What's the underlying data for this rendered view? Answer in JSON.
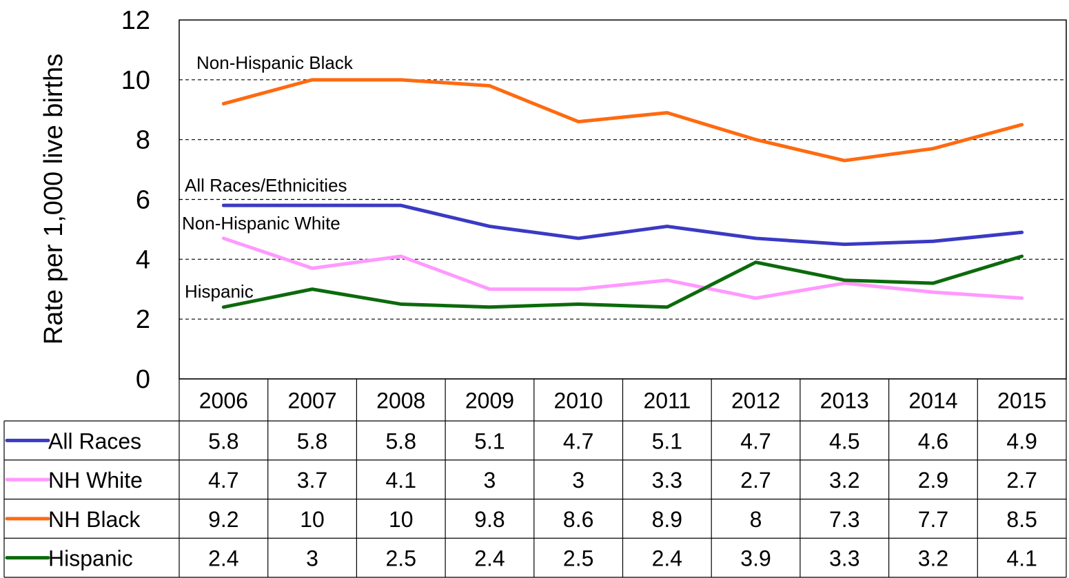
{
  "chart_data": {
    "type": "line",
    "ylabel": "Rate per 1,000 live births",
    "xlabel": "",
    "ylim": [
      0,
      12
    ],
    "yticks": [
      0,
      2,
      4,
      6,
      8,
      10,
      12
    ],
    "grid": "horizontal dashed at 2, 4, 6, 8, 10",
    "categories": [
      "2006",
      "2007",
      "2008",
      "2009",
      "2010",
      "2011",
      "2012",
      "2013",
      "2014",
      "2015"
    ],
    "series": [
      {
        "name": "All Races",
        "label": "All Races/Ethnicities",
        "color": "#3a3ac4",
        "values": [
          5.8,
          5.8,
          5.8,
          5.1,
          4.7,
          5.1,
          4.7,
          4.5,
          4.6,
          4.9
        ]
      },
      {
        "name": "NH White",
        "label": "Non-Hispanic White",
        "color": "#ff99ff",
        "values": [
          4.7,
          3.7,
          4.1,
          3,
          3,
          3.3,
          2.7,
          3.2,
          2.9,
          2.7
        ]
      },
      {
        "name": "NH Black",
        "label": "Non-Hispanic Black",
        "color": "#ff6a10",
        "values": [
          9.2,
          10,
          10,
          9.8,
          8.6,
          8.9,
          8,
          7.3,
          7.7,
          8.5
        ]
      },
      {
        "name": "Hispanic",
        "label": "Hispanic",
        "color": "#0c6a0c",
        "values": [
          2.4,
          3,
          2.5,
          2.4,
          2.5,
          2.4,
          3.9,
          3.3,
          3.2,
          4.1
        ]
      }
    ],
    "data_table": "below chart, one row per series with legend line, values as printed"
  }
}
